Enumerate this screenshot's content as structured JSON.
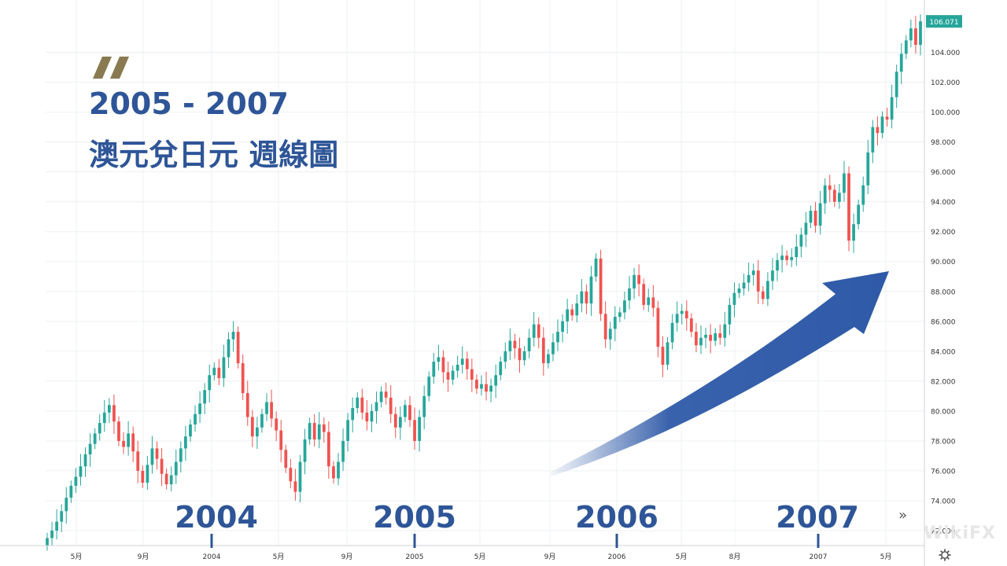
{
  "title_line1": "2005 - 2007",
  "title_line2": "澳元兌日元 週線圖",
  "year_labels": [
    "2004",
    "2005",
    "2006",
    "2007"
  ],
  "watermark": "WikiFX",
  "icons": {
    "logo": "double-slash-logo",
    "scroll": "double-chevron-right-icon",
    "settings": "gear-icon"
  },
  "colors": {
    "up": "#26a69a",
    "down": "#ef5350",
    "accent": "#2e5597",
    "price_tag": "#26a69a",
    "arrow": "#2f5aa8"
  },
  "chart_data": {
    "type": "candlestick",
    "title": "",
    "ylim": [
      71,
      107.5
    ],
    "y_ticks": [
      "72.000",
      "74.000",
      "76.000",
      "78.000",
      "80.000",
      "82.000",
      "84.000",
      "86.000",
      "88.000",
      "90.000",
      "92.000",
      "94.000",
      "96.000",
      "98.000",
      "100.000",
      "102.000",
      "104.000"
    ],
    "x_ticks": [
      "5月",
      "9月",
      "2004",
      "5月",
      "9月",
      "2005",
      "5月",
      "9月",
      "2006",
      "5月",
      "8月",
      "2007",
      "5月"
    ],
    "last_price": "106.071",
    "grid": true,
    "closes": [
      71.5,
      72.0,
      72.6,
      73.3,
      74.2,
      75.0,
      75.6,
      76.3,
      77.1,
      77.8,
      78.5,
      79.2,
      79.9,
      80.4,
      79.3,
      78.0,
      77.6,
      78.5,
      77.3,
      76.0,
      75.2,
      76.4,
      77.5,
      76.8,
      75.8,
      75.1,
      75.7,
      76.6,
      77.5,
      78.3,
      79.1,
      79.8,
      80.5,
      81.4,
      82.4,
      82.9,
      82.2,
      83.6,
      84.8,
      85.3,
      83.2,
      81.2,
      79.6,
      78.3,
      78.9,
      79.8,
      80.6,
      79.5,
      78.7,
      77.4,
      76.2,
      75.3,
      74.6,
      76.6,
      78.1,
      79.2,
      78.1,
      79.1,
      78.6,
      76.3,
      75.5,
      76.6,
      78.0,
      79.4,
      80.2,
      80.9,
      79.9,
      79.3,
      80.0,
      80.6,
      81.3,
      80.9,
      79.8,
      78.9,
      79.6,
      80.4,
      79.4,
      78.0,
      79.6,
      81.0,
      82.3,
      83.3,
      83.6,
      82.6,
      82.1,
      82.7,
      83.1,
      83.5,
      82.8,
      82.1,
      81.5,
      81.8,
      81.3,
      81.7,
      82.4,
      83.3,
      84.0,
      84.7,
      84.2,
      83.4,
      84.0,
      84.9,
      85.8,
      84.9,
      83.2,
      83.8,
      84.6,
      85.3,
      86.0,
      86.8,
      86.4,
      87.2,
      88.0,
      87.2,
      89.0,
      90.2,
      86.5,
      84.8,
      85.5,
      86.3,
      86.6,
      87.4,
      88.2,
      89.1,
      88.5,
      87.1,
      87.6,
      86.9,
      84.3,
      83.1,
      84.6,
      85.9,
      86.5,
      86.7,
      86.2,
      85.3,
      84.4,
      84.9,
      85.1,
      84.7,
      85.2,
      84.9,
      85.8,
      87.1,
      87.9,
      88.2,
      88.6,
      89.1,
      89.4,
      88.0,
      87.5,
      88.7,
      89.4,
      90.1,
      90.4,
      90.1,
      90.3,
      91.0,
      91.8,
      92.6,
      93.4,
      92.4,
      93.9,
      95.1,
      94.8,
      94.0,
      94.6,
      95.9,
      91.4,
      92.5,
      93.8,
      95.1,
      97.3,
      99.0,
      98.6,
      99.7,
      99.5,
      101.0,
      102.7,
      103.9,
      104.8,
      105.6,
      104.5,
      106.07
    ]
  }
}
